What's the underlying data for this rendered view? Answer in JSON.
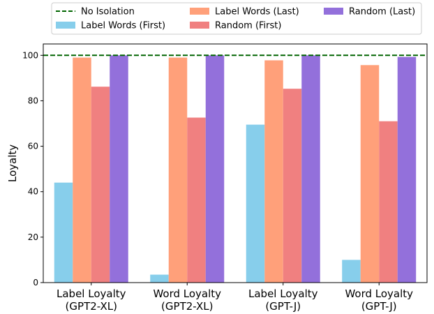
{
  "chart_data": {
    "type": "bar",
    "title": "",
    "xlabel": "",
    "ylabel": "Loyalty",
    "ylim": [
      0,
      105
    ],
    "yticks": [
      0,
      20,
      40,
      60,
      80,
      100
    ],
    "grid": false,
    "legend_position": "top",
    "categories": [
      {
        "line1": "Label Loyalty",
        "line2": "(GPT2-XL)"
      },
      {
        "line1": "Word Loyalty",
        "line2": "(GPT2-XL)"
      },
      {
        "line1": "Label Loyalty",
        "line2": "(GPT-J)"
      },
      {
        "line1": "Word Loyalty",
        "line2": "(GPT-J)"
      }
    ],
    "series": [
      {
        "name": "Label Words (First)",
        "color": "#87ceeb",
        "values": [
          44.0,
          3.5,
          69.5,
          10.0
        ]
      },
      {
        "name": "Label Words (Last)",
        "color": "#ffa07a",
        "values": [
          99.0,
          99.0,
          97.8,
          95.7
        ]
      },
      {
        "name": "Random (First)",
        "color": "#f08080",
        "values": [
          86.2,
          72.6,
          85.3,
          71.0
        ]
      },
      {
        "name": "Random (Last)",
        "color": "#9370db",
        "values": [
          100,
          100,
          100,
          99.3
        ]
      }
    ],
    "reference_line": {
      "name": "No Isolation",
      "value": 100,
      "color": "#006400",
      "style": "dashed"
    }
  }
}
